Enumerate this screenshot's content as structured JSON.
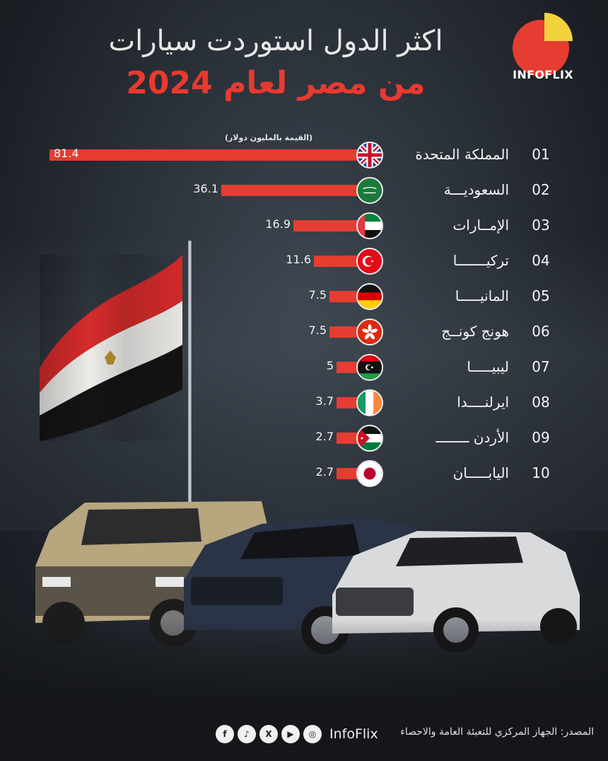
{
  "header": {
    "title_line1": "اكثر الدول استوردت سيارات",
    "title_line2": "من مصر لعام 2024",
    "brand_logo_text": "INFOFLIX"
  },
  "colors": {
    "accent": "#e53d31",
    "logo_yellow": "#f4d23c",
    "background": "#2a3038"
  },
  "chart_data": {
    "type": "bar",
    "orientation": "horizontal",
    "unit_label": "(القيمة بالمليون دولار)",
    "categories": [
      "المملكة المتحدة",
      "السعودية",
      "الإمارات",
      "تركيا",
      "المانيا",
      "هونج كونج",
      "ليبيا",
      "ايرلندا",
      "الأردن",
      "اليابان"
    ],
    "display_labels": [
      "المملكة المتحدة",
      "السعوديـــة",
      "الإمــارات",
      "تركيـــــــا",
      "المانيـــــا",
      "هونج كونــج",
      "ليبيـــــا",
      "ايرلنــــدا",
      "الأردن ــــــــ",
      "اليابـــــان"
    ],
    "ranks": [
      "01",
      "02",
      "03",
      "04",
      "05",
      "06",
      "07",
      "08",
      "09",
      "10"
    ],
    "value_labels": [
      "81.4",
      "36.1",
      "16.9",
      "11.6",
      "7.5",
      "7.5",
      "5",
      "3.7",
      "2.7",
      "2.7"
    ],
    "values": [
      81.4,
      36.1,
      16.9,
      11.6,
      7.5,
      7.5,
      5,
      3.7,
      2.7,
      2.7
    ],
    "flags": [
      "uk-flag-icon",
      "saudi-flag-icon",
      "uae-flag-icon",
      "turkey-flag-icon",
      "germany-flag-icon",
      "hongkong-flag-icon",
      "libya-flag-icon",
      "ireland-flag-icon",
      "jordan-flag-icon",
      "japan-flag-icon"
    ],
    "xlim": [
      0,
      81.4
    ],
    "bar_color": "#e53d31",
    "grid": false,
    "legend": "none"
  },
  "footer": {
    "source": "المصدر:  الجهاز المركزي للتعبئة العامة والاحصاء",
    "brand": "InfoFlix",
    "socials": [
      "instagram-icon",
      "youtube-icon",
      "x-icon",
      "tiktok-icon",
      "facebook-icon"
    ]
  }
}
